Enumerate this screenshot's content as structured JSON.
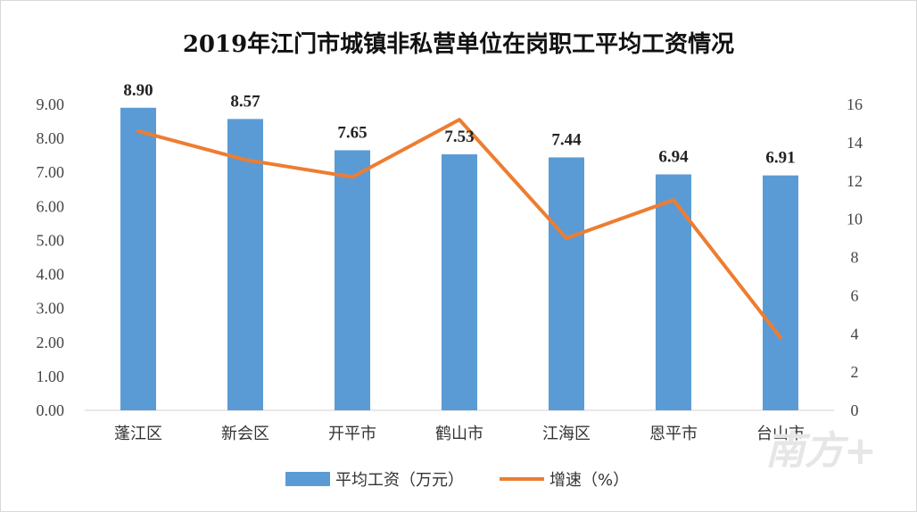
{
  "chart_data": {
    "type": "bar",
    "title": "2019年江门市城镇非私营单位在岗职工平均工资情况",
    "categories": [
      "蓬江区",
      "新会区",
      "开平市",
      "鹤山市",
      "江海区",
      "恩平市",
      "台山市"
    ],
    "series": [
      {
        "name": "平均工资（万元）",
        "type": "bar",
        "axis": "left",
        "color": "#5b9bd5",
        "values": [
          8.9,
          8.57,
          7.65,
          7.53,
          7.44,
          6.94,
          6.91
        ]
      },
      {
        "name": "增速（%）",
        "type": "line",
        "axis": "right",
        "color": "#ed7d31",
        "values": [
          14.6,
          13.1,
          12.2,
          15.2,
          9.0,
          11.0,
          3.8
        ]
      }
    ],
    "data_labels": [
      "8.90",
      "8.57",
      "7.65",
      "7.53",
      "7.44",
      "6.94",
      "6.91"
    ],
    "y_left": {
      "min": 0,
      "max": 9,
      "ticks": [
        "0.00",
        "1.00",
        "2.00",
        "3.00",
        "4.00",
        "5.00",
        "6.00",
        "7.00",
        "8.00",
        "9.00"
      ]
    },
    "y_right": {
      "min": 0,
      "max": 16,
      "ticks": [
        "0",
        "2",
        "4",
        "6",
        "8",
        "10",
        "12",
        "14",
        "16"
      ]
    },
    "legend_position": "bottom",
    "grid": false
  },
  "watermark": "南方+"
}
